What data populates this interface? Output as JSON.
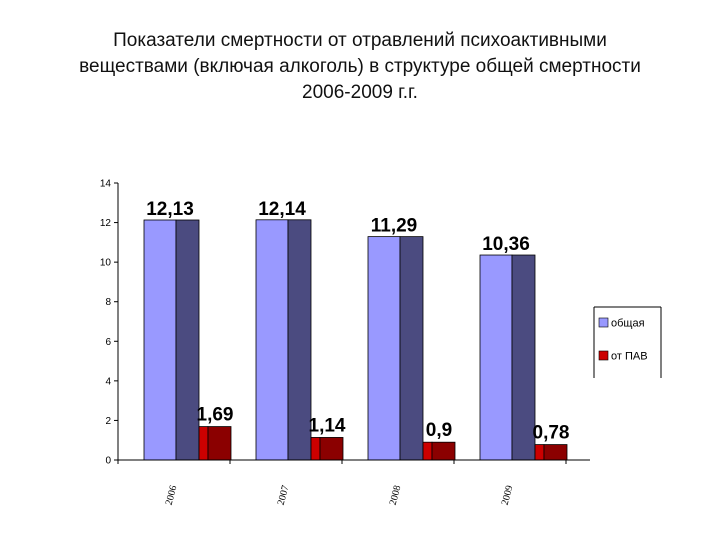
{
  "title_lines": [
    "Показатели смертности от отравлений психоактивными",
    "веществами (включая алкоголь)  в структуре общей смертности",
    "2006-2009 г.г."
  ],
  "chart_data": {
    "type": "bar",
    "title": "Показатели смертности от отравлений психоактивными веществами (включая алкоголь)  в структуре общей смертности 2006-2009 г.г.",
    "categories": [
      "2006",
      "2007",
      "2008",
      "2009"
    ],
    "series": [
      {
        "name": "общая",
        "values": [
          12.13,
          12.14,
          11.29,
          10.36
        ],
        "labels": [
          "12,13",
          "12,14",
          "11,29",
          "10,36"
        ],
        "color": "#9999FF",
        "side_color": "#4B4B80"
      },
      {
        "name": "от ПАВ",
        "values": [
          1.69,
          1.14,
          0.9,
          0.78
        ],
        "labels": [
          "1,69",
          "1,14",
          "0,9",
          "0,78"
        ],
        "color": "#CC0000",
        "side_color": "#8B0000"
      }
    ],
    "y_ticks": [
      "0",
      "2",
      "4",
      "6",
      "8",
      "10",
      "12",
      "14"
    ],
    "ylim": [
      0,
      14
    ],
    "xlabel": "",
    "ylabel": "",
    "grid": false,
    "legend_position": "right"
  }
}
